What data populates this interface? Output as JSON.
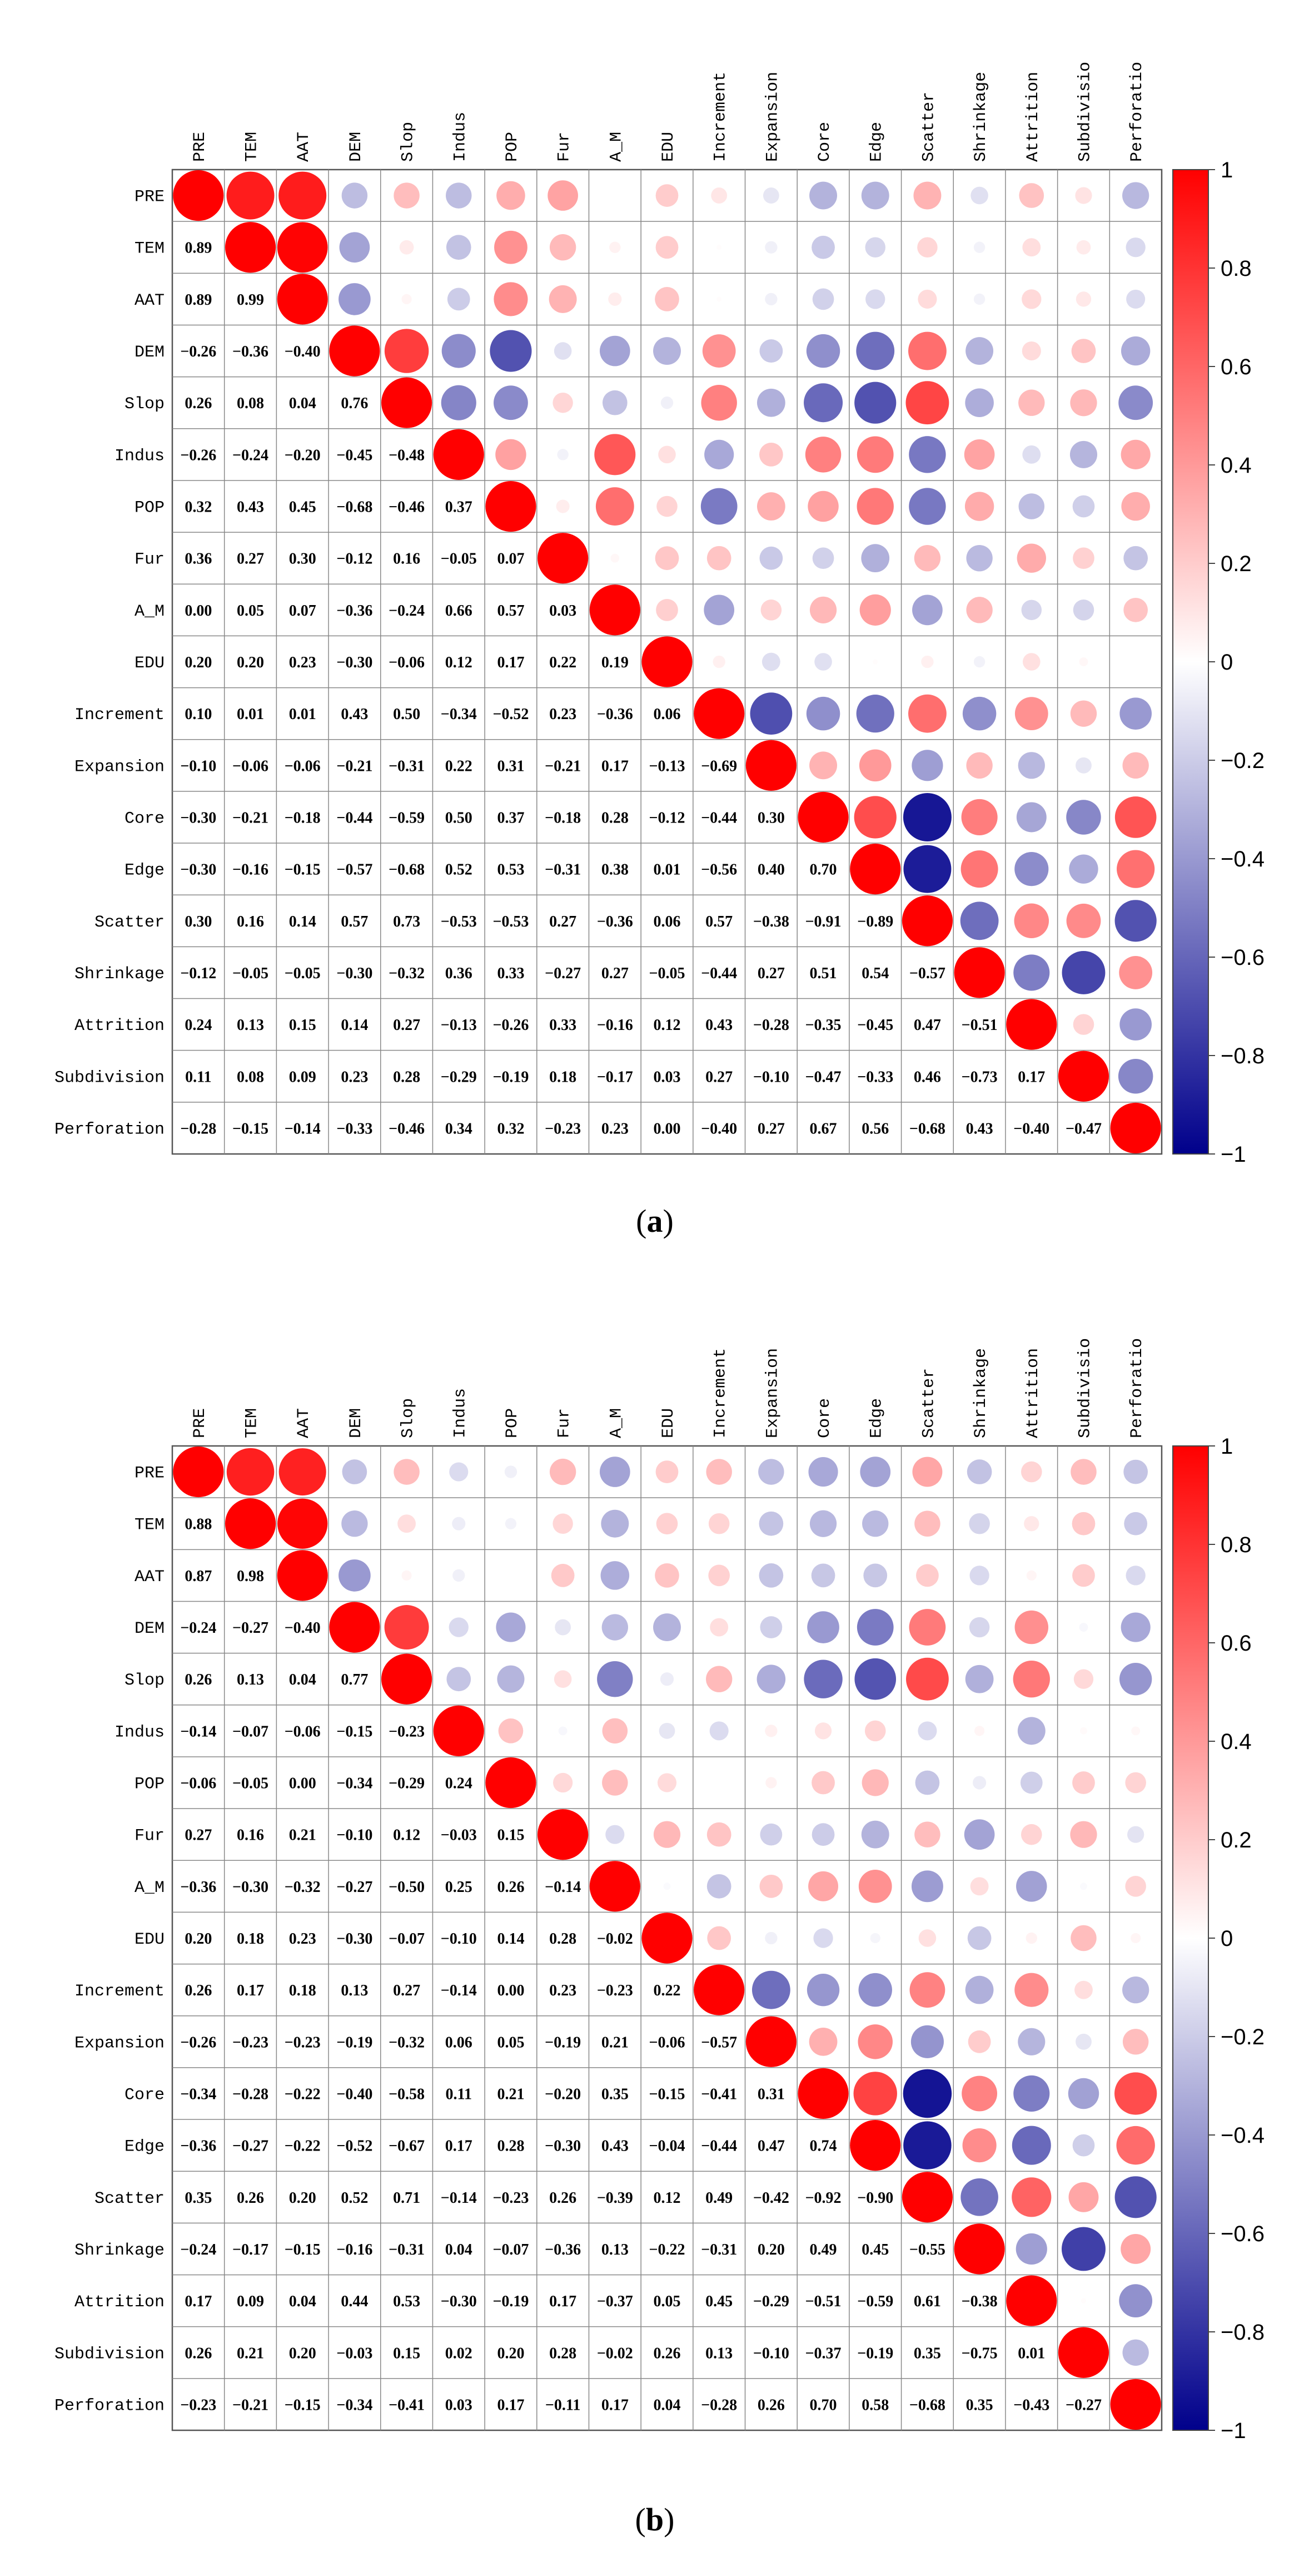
{
  "chart_data": [
    {
      "type": "heatmap",
      "style": "corrplot-mixed",
      "panel_label": "(a)",
      "panel_letter": "a",
      "variables": [
        "PRE",
        "TEM",
        "AAT",
        "DEM",
        "Slop",
        "Indus",
        "POP",
        "Fur",
        "A_M",
        "EDU",
        "Increment",
        "Expansion",
        "Core",
        "Edge",
        "Scatter",
        "Shrinkage",
        "Attrition",
        "Subdivision",
        "Perforation"
      ],
      "column_labels": [
        "PRE",
        "TEM",
        "AAT",
        "DEM",
        "Slop",
        "Indus",
        "POP",
        "Fur",
        "A_M",
        "EDU",
        "Increment",
        "Expansion",
        "Core",
        "Edge",
        "Scatter",
        "Shrinkage",
        "Attrition",
        "Subdivisio",
        "Perforatio"
      ],
      "lower_labels": [
        [],
        [
          "0.89"
        ],
        [
          "0.89",
          "0.99"
        ],
        [
          "−0.26",
          "−0.36",
          "−0.40"
        ],
        [
          "0.26",
          "0.08",
          "0.04",
          "0.76"
        ],
        [
          "−0.26",
          "−0.24",
          "−0.20",
          "−0.45",
          "−0.48"
        ],
        [
          "0.32",
          "0.43",
          "0.45",
          "−0.68",
          "−0.46",
          "0.37"
        ],
        [
          "0.36",
          "0.27",
          "0.30",
          "−0.12",
          "0.16",
          "−0.05",
          "0.07"
        ],
        [
          "0.00",
          "0.05",
          "0.07",
          "−0.36",
          "−0.24",
          "0.66",
          "0.57",
          "0.03"
        ],
        [
          "0.20",
          "0.20",
          "0.23",
          "−0.30",
          "−0.06",
          "0.12",
          "0.17",
          "0.22",
          "0.19"
        ],
        [
          "0.10",
          "0.01",
          "0.01",
          "0.43",
          "0.50",
          "−0.34",
          "−0.52",
          "0.23",
          "−0.36",
          "0.06"
        ],
        [
          "−0.10",
          "−0.06",
          "−0.06",
          "−0.21",
          "−0.31",
          "0.22",
          "0.31",
          "−0.21",
          "0.17",
          "−0.13",
          "−0.69"
        ],
        [
          "−0.30",
          "−0.21",
          "−0.18",
          "−0.44",
          "−0.59",
          "0.50",
          "0.37",
          "−0.18",
          "0.28",
          "−0.12",
          "−0.44",
          "0.30"
        ],
        [
          "−0.30",
          "−0.16",
          "−0.15",
          "−0.57",
          "−0.68",
          "0.52",
          "0.53",
          "−0.31",
          "0.38",
          "0.01",
          "−0.56",
          "0.40",
          "0.70"
        ],
        [
          "0.30",
          "0.16",
          "0.14",
          "0.57",
          "0.73",
          "−0.53",
          "−0.53",
          "0.27",
          "−0.36",
          "0.06",
          "0.57",
          "−0.38",
          "−0.91",
          "−0.89"
        ],
        [
          "−0.12",
          "−0.05",
          "−0.05",
          "−0.30",
          "−0.32",
          "0.36",
          "0.33",
          "−0.27",
          "0.27",
          "−0.05",
          "−0.44",
          "0.27",
          "0.51",
          "0.54",
          "−0.57"
        ],
        [
          "0.24",
          "0.13",
          "0.15",
          "0.14",
          "0.27",
          "−0.13",
          "−0.26",
          "0.33",
          "−0.16",
          "0.12",
          "0.43",
          "−0.28",
          "−0.35",
          "−0.45",
          "0.47",
          "−0.51"
        ],
        [
          "0.11",
          "0.08",
          "0.09",
          "0.23",
          "0.28",
          "−0.29",
          "−0.19",
          "0.18",
          "−0.17",
          "0.03",
          "0.27",
          "−0.10",
          "−0.47",
          "−0.33",
          "0.46",
          "−0.73",
          "0.17"
        ],
        [
          "−0.28",
          "−0.15",
          "−0.14",
          "−0.33",
          "−0.46",
          "0.34",
          "0.32",
          "−0.23",
          "0.23",
          "0.00",
          "−0.40",
          "0.27",
          "0.67",
          "0.56",
          "−0.68",
          "0.43",
          "−0.40",
          "−0.47"
        ]
      ],
      "colorbar_ticks": [
        "1",
        "0.8",
        "0.6",
        "0.4",
        "0.2",
        "0",
        "−0.2",
        "−0.4",
        "−0.6",
        "−0.8",
        "−1"
      ],
      "colorbar_range": [
        -1,
        1
      ],
      "upper_triangle": "circles (area ~ |r|, color by r)",
      "lower_triangle": "numbers",
      "diagonal": "circles (r = 1)"
    },
    {
      "type": "heatmap",
      "style": "corrplot-mixed",
      "panel_label": "(b)",
      "panel_letter": "b",
      "variables": [
        "PRE",
        "TEM",
        "AAT",
        "DEM",
        "Slop",
        "Indus",
        "POP",
        "Fur",
        "A_M",
        "EDU",
        "Increment",
        "Expansion",
        "Core",
        "Edge",
        "Scatter",
        "Shrinkage",
        "Attrition",
        "Subdivision",
        "Perforation"
      ],
      "column_labels": [
        "PRE",
        "TEM",
        "AAT",
        "DEM",
        "Slop",
        "Indus",
        "POP",
        "Fur",
        "A_M",
        "EDU",
        "Increment",
        "Expansion",
        "Core",
        "Edge",
        "Scatter",
        "Shrinkage",
        "Attrition",
        "Subdivisio",
        "Perforatio"
      ],
      "lower_labels": [
        [],
        [
          "0.88"
        ],
        [
          "0.87",
          "0.98"
        ],
        [
          "−0.24",
          "−0.27",
          "−0.40"
        ],
        [
          "0.26",
          "0.13",
          "0.04",
          "0.77"
        ],
        [
          "−0.14",
          "−0.07",
          "−0.06",
          "−0.15",
          "−0.23"
        ],
        [
          "−0.06",
          "−0.05",
          "0.00",
          "−0.34",
          "−0.29",
          "0.24"
        ],
        [
          "0.27",
          "0.16",
          "0.21",
          "−0.10",
          "0.12",
          "−0.03",
          "0.15"
        ],
        [
          "−0.36",
          "−0.30",
          "−0.32",
          "−0.27",
          "−0.50",
          "0.25",
          "0.26",
          "−0.14"
        ],
        [
          "0.20",
          "0.18",
          "0.23",
          "−0.30",
          "−0.07",
          "−0.10",
          "0.14",
          "0.28",
          "−0.02"
        ],
        [
          "0.26",
          "0.17",
          "0.18",
          "0.13",
          "0.27",
          "−0.14",
          "0.00",
          "0.23",
          "−0.23",
          "0.22"
        ],
        [
          "−0.26",
          "−0.23",
          "−0.23",
          "−0.19",
          "−0.32",
          "0.06",
          "0.05",
          "−0.19",
          "0.21",
          "−0.06",
          "−0.57"
        ],
        [
          "−0.34",
          "−0.28",
          "−0.22",
          "−0.40",
          "−0.58",
          "0.11",
          "0.21",
          "−0.20",
          "0.35",
          "−0.15",
          "−0.41",
          "0.31"
        ],
        [
          "−0.36",
          "−0.27",
          "−0.22",
          "−0.52",
          "−0.67",
          "0.17",
          "0.28",
          "−0.30",
          "0.43",
          "−0.04",
          "−0.44",
          "0.47",
          "0.74"
        ],
        [
          "0.35",
          "0.26",
          "0.20",
          "0.52",
          "0.71",
          "−0.14",
          "−0.23",
          "0.26",
          "−0.39",
          "0.12",
          "0.49",
          "−0.42",
          "−0.92",
          "−0.90"
        ],
        [
          "−0.24",
          "−0.17",
          "−0.15",
          "−0.16",
          "−0.31",
          "0.04",
          "−0.07",
          "−0.36",
          "0.13",
          "−0.22",
          "−0.31",
          "0.20",
          "0.49",
          "0.45",
          "−0.55"
        ],
        [
          "0.17",
          "0.09",
          "0.04",
          "0.44",
          "0.53",
          "−0.30",
          "−0.19",
          "0.17",
          "−0.37",
          "0.05",
          "0.45",
          "−0.29",
          "−0.51",
          "−0.59",
          "0.61",
          "−0.38"
        ],
        [
          "0.26",
          "0.21",
          "0.20",
          "−0.03",
          "0.15",
          "0.02",
          "0.20",
          "0.28",
          "−0.02",
          "0.26",
          "0.13",
          "−0.10",
          "−0.37",
          "−0.19",
          "0.35",
          "−0.75",
          "0.01"
        ],
        [
          "−0.23",
          "−0.21",
          "−0.15",
          "−0.34",
          "−0.41",
          "0.03",
          "0.17",
          "−0.11",
          "0.17",
          "0.04",
          "−0.28",
          "0.26",
          "0.70",
          "0.58",
          "−0.68",
          "0.35",
          "−0.43",
          "−0.27"
        ]
      ],
      "colorbar_ticks": [
        "1",
        "0.8",
        "0.6",
        "0.4",
        "0.2",
        "0",
        "−0.2",
        "−0.4",
        "−0.6",
        "−0.8",
        "−1"
      ],
      "colorbar_range": [
        -1,
        1
      ],
      "upper_triangle": "circles (area ~ |r|, color by r)",
      "lower_triangle": "numbers",
      "diagonal": "circles (r = 1)"
    }
  ]
}
